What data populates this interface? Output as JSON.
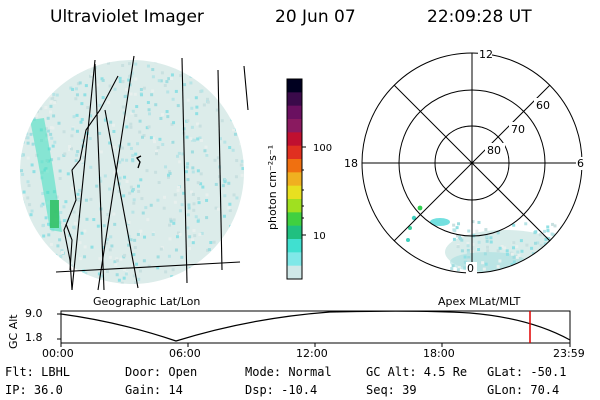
{
  "header": {
    "instrument": "Ultraviolet Imager",
    "date": "20 Jun 07",
    "time": "22:09:28 UT"
  },
  "panels": {
    "geographic_label": "Geographic Lat/Lon",
    "apex_label": "Apex MLat/MLT"
  },
  "colorbar": {
    "unit_label": "photon cm⁻²s⁻¹",
    "ticks": [
      "100",
      "10"
    ],
    "scale": "log",
    "colors": [
      "#000020",
      "#3a0a4a",
      "#6a1060",
      "#8a1a60",
      "#c01030",
      "#e03020",
      "#f07010",
      "#f0b020",
      "#e8e020",
      "#a0e020",
      "#40d040",
      "#20c080",
      "#40e0d0",
      "#80e8e8",
      "#d0e8e8"
    ]
  },
  "polar_plot": {
    "mlt_labels": {
      "top": "12",
      "left": "18",
      "right": "6",
      "bottom": "0"
    },
    "mlat_labels": [
      "60",
      "70",
      "80"
    ]
  },
  "altitude_plot": {
    "ylabel": "GC Alt",
    "yticks": [
      "9.0",
      "1.8"
    ],
    "xticks": [
      "00:00",
      "06:00",
      "12:00",
      "18:00",
      "23:59"
    ],
    "marker_color": "#e00000"
  },
  "info": {
    "flt": "Flt: LBHL",
    "ip": "IP: 36.0",
    "door": "Door: Open",
    "gain": "Gain: 14",
    "mode": "Mode: Normal",
    "dsp": "Dsp:  -10.4",
    "gc_alt": "GC Alt: 4.5 Re",
    "seq": "Seq: 39",
    "glat": "GLat: -50.1",
    "glon": "GLon:  70.4"
  }
}
